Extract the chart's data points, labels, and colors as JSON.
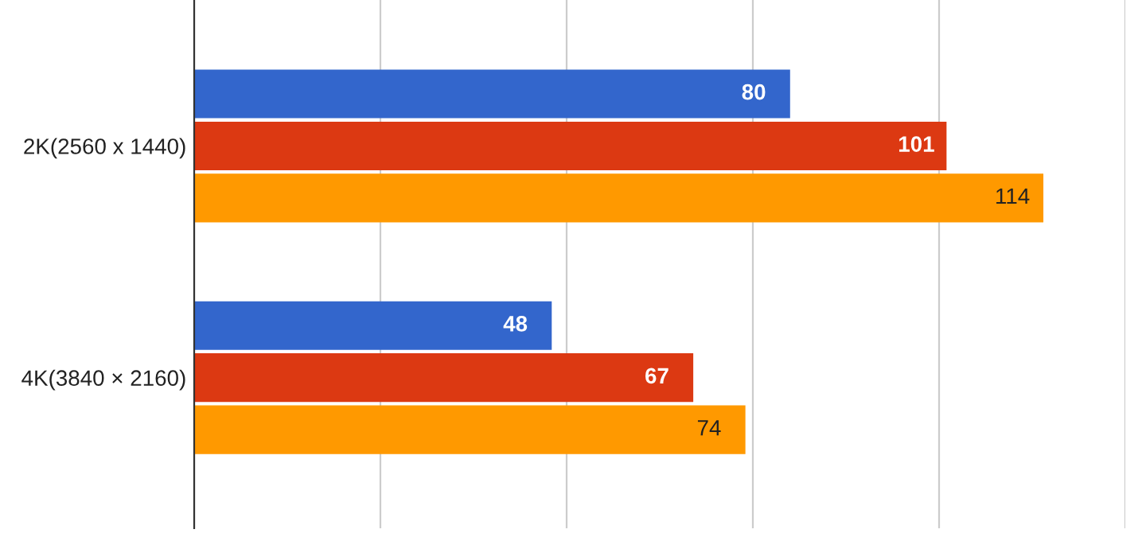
{
  "chart_data": {
    "type": "bar",
    "orientation": "horizontal",
    "categories": [
      "2K(2560 x 1440)",
      "4K(3840 × 2160)"
    ],
    "series": [
      {
        "color": "#3366cc",
        "values": [
          80,
          48
        ]
      },
      {
        "color": "#dc3912",
        "values": [
          101,
          67
        ]
      },
      {
        "color": "#ff9900",
        "values": [
          114,
          74
        ]
      }
    ],
    "xlim": [
      0,
      125
    ],
    "xticks": [
      {
        "value": 0,
        "label": null
      },
      {
        "value": 25,
        "label": null
      },
      {
        "value": 50,
        "label": null
      },
      {
        "value": 75,
        "label": null
      },
      {
        "value": 100,
        "label": null
      },
      {
        "value": 125,
        "label": null
      }
    ],
    "tick_labels": "y",
    "grid": "x",
    "data_labels": true,
    "legend": false
  }
}
